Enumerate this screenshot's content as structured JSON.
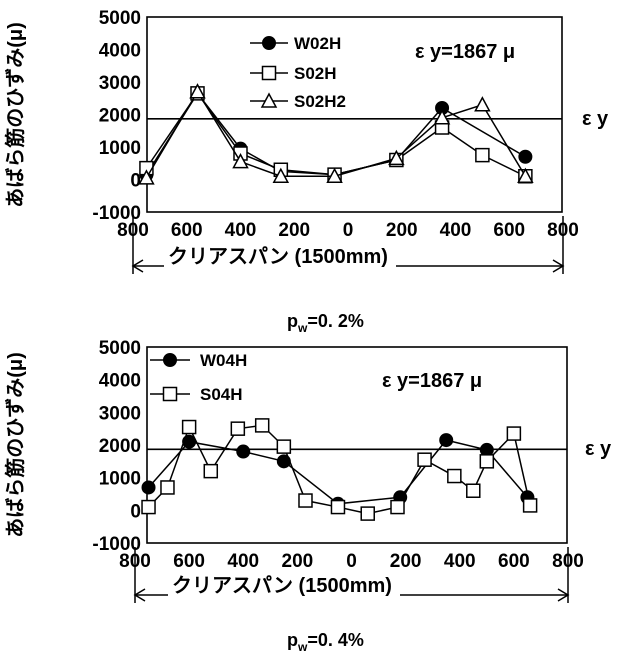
{
  "chart_data": [
    {
      "type": "line",
      "caption": "p",
      "caption_sub": "w",
      "caption_value": "=0. 2%",
      "ylabel": "あばら筋のひずみ(μ)",
      "xlabel": "クリアスパン (1500mm)",
      "annotation": "ε y=1867 μ",
      "eps_label": "ε y",
      "yield_strain": 1867,
      "ylim": [
        -1000,
        5000
      ],
      "yticks": [
        "5000",
        "4000",
        "3000",
        "2000",
        "1000",
        "0",
        "-1000"
      ],
      "xticks": [
        "800",
        "600",
        "400",
        "200",
        "0",
        "200",
        "400",
        "600",
        "800"
      ],
      "x_axis": "distance (mm) from midspan, left side and right side",
      "legend_position": "top-left",
      "series": [
        {
          "name": "W02H",
          "marker": "filled-circle",
          "x": [
            -750,
            -560,
            -400,
            -250,
            -50,
            180,
            350,
            660
          ],
          "y": [
            150,
            2650,
            950,
            250,
            150,
            600,
            2200,
            700
          ]
        },
        {
          "name": "S02H",
          "marker": "open-square",
          "x": [
            -750,
            -560,
            -400,
            -250,
            -50,
            180,
            350,
            500,
            660
          ],
          "y": [
            350,
            2650,
            800,
            300,
            150,
            600,
            1600,
            750,
            100
          ]
        },
        {
          "name": "S02H2",
          "marker": "open-triangle",
          "x": [
            -750,
            -560,
            -400,
            -250,
            -50,
            180,
            350,
            500,
            660
          ],
          "y": [
            50,
            2700,
            550,
            100,
            100,
            650,
            1900,
            2300,
            100
          ]
        }
      ]
    },
    {
      "type": "line",
      "caption": "p",
      "caption_sub": "w",
      "caption_value": "=0. 4%",
      "ylabel": "あばら筋のひずみ(μ)",
      "xlabel": "クリアスパン (1500mm)",
      "annotation": "ε y=1867 μ",
      "eps_label": "ε y",
      "yield_strain": 1867,
      "ylim": [
        -1000,
        5000
      ],
      "yticks": [
        "5000",
        "4000",
        "3000",
        "2000",
        "1000",
        "0",
        "-1000"
      ],
      "xticks": [
        "800",
        "600",
        "400",
        "200",
        "0",
        "200",
        "400",
        "600",
        "800"
      ],
      "x_axis": "distance (mm) from midspan, left side and right side",
      "legend_position": "top-left",
      "series": [
        {
          "name": "W04H",
          "marker": "filled-circle",
          "x": [
            -750,
            -600,
            -400,
            -250,
            -50,
            180,
            350,
            500,
            650
          ],
          "y": [
            700,
            2100,
            1800,
            1500,
            200,
            400,
            2150,
            1850,
            400
          ]
        },
        {
          "name": "S04H",
          "marker": "open-square",
          "x": [
            -750,
            -680,
            -600,
            -520,
            -420,
            -330,
            -250,
            -170,
            -50,
            60,
            170,
            270,
            380,
            450,
            500,
            600,
            660
          ],
          "y": [
            100,
            700,
            2550,
            1200,
            2500,
            2600,
            1950,
            300,
            100,
            -100,
            100,
            1550,
            1050,
            600,
            1500,
            2350,
            150
          ]
        }
      ]
    }
  ]
}
